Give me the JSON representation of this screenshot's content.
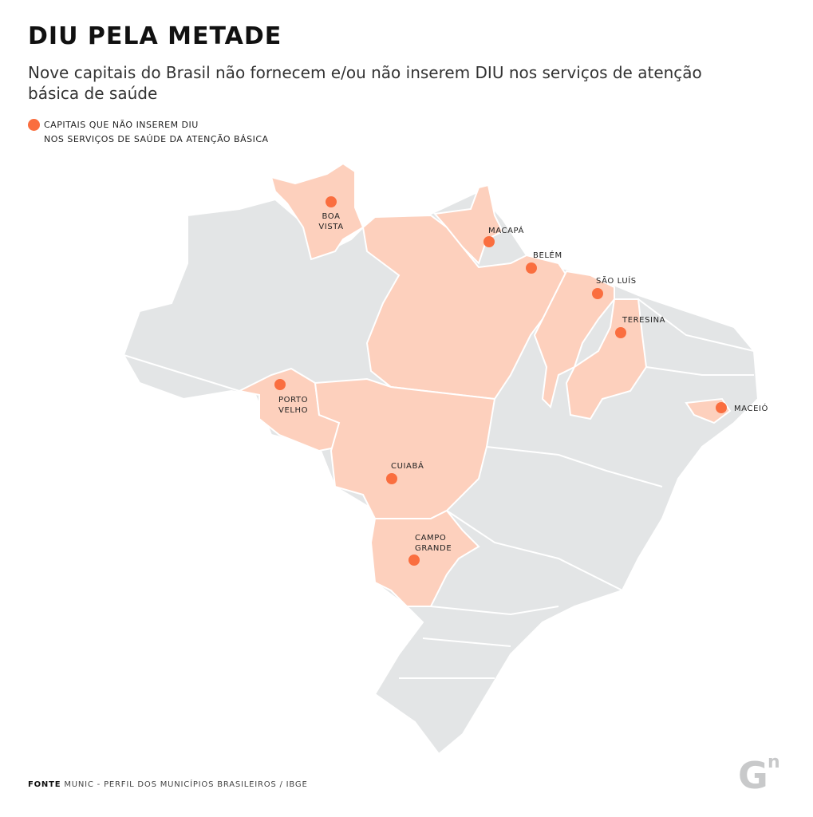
{
  "title": "DIU PELA METADE",
  "subtitle": "Nove capitais do Brasil não fornecem e/ou não inserem DIU nos serviços de atenção básica de saúde",
  "legend": {
    "lines": [
      "CAPITAIS QUE NÃO INSEREM DIU",
      "NOS SERVIÇOS DE SAÚDE DA ATENÇÃO BÁSICA"
    ]
  },
  "cities": [
    {
      "lines": [
        "BOA",
        "VISTA"
      ]
    },
    {
      "lines": [
        "MACAPÁ"
      ]
    },
    {
      "lines": [
        "BELÉM"
      ]
    },
    {
      "lines": [
        "SÃO LUÍS"
      ]
    },
    {
      "lines": [
        "TERESINA"
      ]
    },
    {
      "lines": [
        "MACEIÓ"
      ]
    },
    {
      "lines": [
        "PORTO",
        "VELHO"
      ]
    },
    {
      "lines": [
        "CUIABÁ"
      ]
    },
    {
      "lines": [
        "CAMPO",
        "GRANDE"
      ]
    }
  ],
  "source": {
    "label": "FONTE",
    "text": "MUNIC - PERFIL DOS MUNICÍPIOS BRASILEIROS / IBGE"
  },
  "logo": {
    "main": "G",
    "sup": "n"
  }
}
